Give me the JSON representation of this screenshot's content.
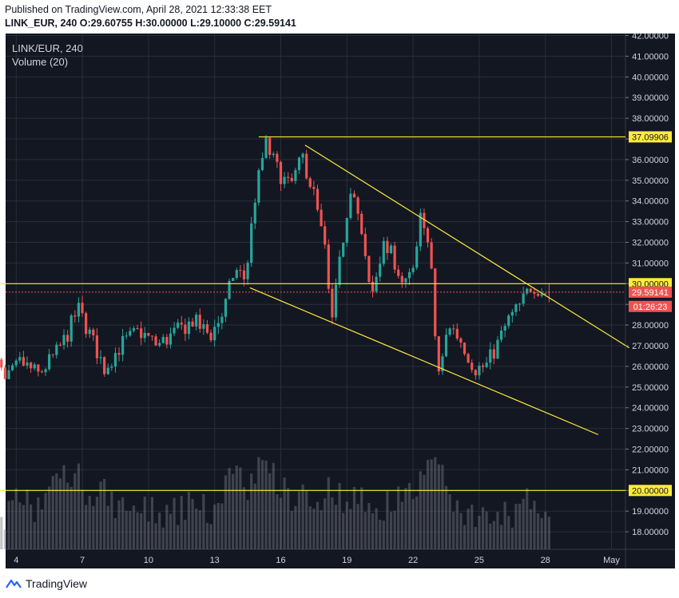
{
  "header": {
    "published": "Published on TradingView.com, April 28, 2021 12:33:38 EET",
    "symbol": "LINK_EUR, 240",
    "ohlc_o": "O:29.60755",
    "ohlc_h": "H:30.00000",
    "ohlc_l": "L:29.10000",
    "ohlc_c": "C:29.59141"
  },
  "legend": {
    "symbol": "LINK/EUR, 240",
    "volume": "Volume (20)"
  },
  "branding": {
    "name": "TradingView"
  },
  "colors": {
    "background": "#131722",
    "up": "#26a69a",
    "down": "#ef5350",
    "trendline": "#ffeb3b",
    "volume": "#787b86",
    "grid": "#2a2e39"
  },
  "chart_data": {
    "type": "candlestick",
    "symbol": "LINK/EUR",
    "interval": "240",
    "ylim": [
      17.25,
      42.0
    ],
    "y_ticks": [
      "18.00000",
      "19.00000",
      "20.00000",
      "21.00000",
      "22.00000",
      "23.00000",
      "24.00000",
      "25.00000",
      "26.00000",
      "27.00000",
      "28.00000",
      "29.00000",
      "30.00000",
      "31.00000",
      "32.00000",
      "33.00000",
      "34.00000",
      "35.00000",
      "36.00000",
      "37.00000",
      "38.00000",
      "39.00000",
      "40.00000",
      "41.00000",
      "42.00000"
    ],
    "x_ticks": [
      {
        "label": "4",
        "day": 4
      },
      {
        "label": "7",
        "day": 7
      },
      {
        "label": "10",
        "day": 10
      },
      {
        "label": "13",
        "day": 13
      },
      {
        "label": "16",
        "day": 16
      },
      {
        "label": "19",
        "day": 19
      },
      {
        "label": "22",
        "day": 22
      },
      {
        "label": "25",
        "day": 25
      },
      {
        "label": "28",
        "day": 28
      },
      {
        "label": "May",
        "day": 31
      }
    ],
    "grid": true,
    "price_labels": [
      {
        "text": "37.09906",
        "price": 37.09906,
        "style": "line"
      },
      {
        "text": "30.00000",
        "price": 30.0,
        "style": "line"
      },
      {
        "text": "29.59141",
        "price": 29.59141,
        "style": "last"
      },
      {
        "text": "01:26:23",
        "price": 28.9,
        "style": "countdown"
      },
      {
        "text": "20.00000",
        "price": 20.0,
        "style": "line"
      }
    ],
    "horizontal_lines": [
      {
        "price": 37.09906,
        "from_day": 15.0
      },
      {
        "price": 30.0,
        "from_day": 2.85
      },
      {
        "price": 20.0,
        "from_day": 2.85
      }
    ],
    "trend_lines": [
      {
        "from": [
          17.1,
          36.7
        ],
        "to": [
          31.8,
          26.9
        ]
      },
      {
        "from": [
          14.6,
          29.8
        ],
        "to": [
          30.4,
          22.7
        ]
      }
    ],
    "last_price": 29.59141,
    "volume_ylim": [
      0,
      12000
    ],
    "key_points": [
      [
        2.83,
        27.0,
        5600
      ],
      [
        3.5,
        25.2,
        3200
      ],
      [
        4.2,
        26.2,
        5000
      ],
      [
        5.0,
        25.6,
        3600
      ],
      [
        5.8,
        26.6,
        7500
      ],
      [
        6.3,
        27.5,
        6500
      ],
      [
        6.8,
        28.8,
        7000
      ],
      [
        7.4,
        27.4,
        4800
      ],
      [
        8.0,
        25.9,
        5200
      ],
      [
        8.8,
        27.1,
        3800
      ],
      [
        9.6,
        27.7,
        4000
      ],
      [
        10.4,
        27.0,
        3400
      ],
      [
        11.2,
        27.6,
        3600
      ],
      [
        12.0,
        28.2,
        4200
      ],
      [
        12.8,
        27.5,
        3500
      ],
      [
        13.4,
        28.6,
        5800
      ],
      [
        13.9,
        30.7,
        7600
      ],
      [
        14.4,
        30.2,
        5600
      ],
      [
        14.8,
        34.0,
        6800
      ],
      [
        15.3,
        36.8,
        9200
      ],
      [
        15.8,
        35.6,
        6400
      ],
      [
        16.4,
        34.6,
        5000
      ],
      [
        17.0,
        36.1,
        5400
      ],
      [
        17.5,
        34.3,
        4600
      ],
      [
        18.0,
        31.6,
        5000
      ],
      [
        18.3,
        27.9,
        6000
      ],
      [
        18.8,
        32.0,
        4800
      ],
      [
        19.2,
        35.0,
        5200
      ],
      [
        19.6,
        32.6,
        4400
      ],
      [
        20.1,
        29.3,
        4600
      ],
      [
        20.6,
        31.8,
        4000
      ],
      [
        21.1,
        31.3,
        4500
      ],
      [
        21.6,
        29.8,
        5200
      ],
      [
        22.1,
        30.8,
        5400
      ],
      [
        22.4,
        33.8,
        8000
      ],
      [
        22.8,
        31.0,
        7200
      ],
      [
        23.0,
        27.5,
        9000
      ],
      [
        23.2,
        25.4,
        8200
      ],
      [
        23.6,
        28.1,
        5000
      ],
      [
        24.2,
        27.2,
        3800
      ],
      [
        24.8,
        25.9,
        3000
      ],
      [
        25.3,
        26.0,
        2800
      ],
      [
        25.8,
        27.0,
        3400
      ],
      [
        26.3,
        28.2,
        3000
      ],
      [
        26.9,
        29.0,
        4200
      ],
      [
        27.4,
        30.0,
        4600
      ],
      [
        27.9,
        29.6,
        3400
      ],
      [
        28.2,
        29.59,
        2600
      ]
    ]
  }
}
